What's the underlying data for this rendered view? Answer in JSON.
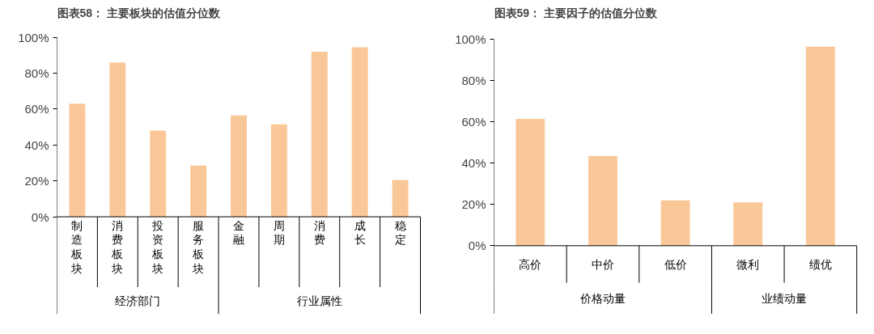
{
  "chart_data": [
    {
      "type": "bar",
      "title": "图表58： 主要板块的估值分位数",
      "categories": [
        "制造板块",
        "消费板块",
        "投资板块",
        "服务板块",
        "金融",
        "周期",
        "消费",
        "成长",
        "稳定"
      ],
      "series": [
        {
          "color": "#fac898",
          "values": [
            63,
            86,
            48,
            28.5,
            null,
            null,
            null,
            null,
            null
          ]
        },
        {
          "color": "#fac898",
          "values": [
            null,
            null,
            null,
            null,
            56.5,
            51.5,
            92,
            94.5,
            20.5
          ]
        }
      ],
      "ylim": [
        0,
        100
      ],
      "yticks": [
        {
          "value": 0,
          "label": "0%"
        },
        {
          "value": 20,
          "label": "20%"
        },
        {
          "value": 40,
          "label": "40%"
        },
        {
          "value": 60,
          "label": "60%"
        },
        {
          "value": 80,
          "label": "80%"
        },
        {
          "value": 100,
          "label": "100%"
        }
      ],
      "annotations": [
        "经济部门",
        "行业属性"
      ]
    },
    {
      "type": "bar",
      "title": "图表59： 主要因子的估值分位数",
      "categories": [
        "高价",
        "中价",
        "低价",
        "微利",
        "绩优"
      ],
      "series": [
        {
          "color": "#fac898",
          "values": [
            61.5,
            43.5,
            22,
            null,
            null
          ]
        },
        {
          "color": "#fac898",
          "values": [
            null,
            null,
            null,
            21,
            96.5
          ]
        }
      ],
      "ylim": [
        0,
        100
      ],
      "yticks": [
        {
          "value": 0,
          "label": "0%"
        },
        {
          "value": 20,
          "label": "20%"
        },
        {
          "value": 40,
          "label": "40%"
        },
        {
          "value": 60,
          "label": "60%"
        },
        {
          "value": 80,
          "label": "80%"
        },
        {
          "value": 100,
          "label": "100%"
        }
      ],
      "annotations": [
        "价格动量",
        "业绩动量"
      ]
    }
  ]
}
